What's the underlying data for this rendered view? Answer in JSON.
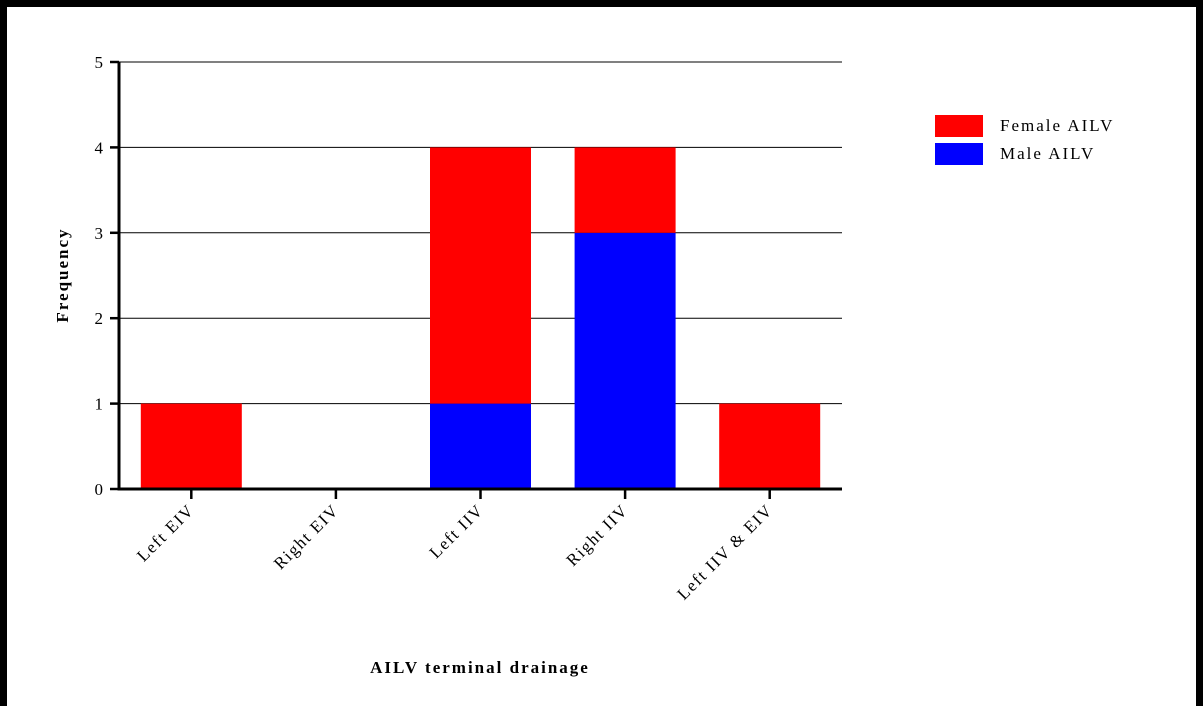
{
  "chart_data": {
    "type": "bar",
    "stacked": true,
    "title": "",
    "xlabel": "AILV terminal drainage",
    "ylabel": "Frequency",
    "categories": [
      "Left EIV",
      "Right EIV",
      "Left IIV",
      "Right IIV",
      "Left IIV & EIV"
    ],
    "series": [
      {
        "name": "Male AILV",
        "color": "#0000ff",
        "values": [
          0,
          0,
          1,
          3,
          0
        ]
      },
      {
        "name": "Female AILV",
        "color": "#ff0000",
        "values": [
          1,
          0,
          3,
          1,
          1
        ]
      }
    ],
    "legend_order": [
      "Female AILV",
      "Male AILV"
    ],
    "ylim": [
      0,
      5
    ],
    "yticks": [
      "0",
      "1",
      "2",
      "3",
      "4",
      "5"
    ],
    "grid": true,
    "legend_position": "right"
  }
}
